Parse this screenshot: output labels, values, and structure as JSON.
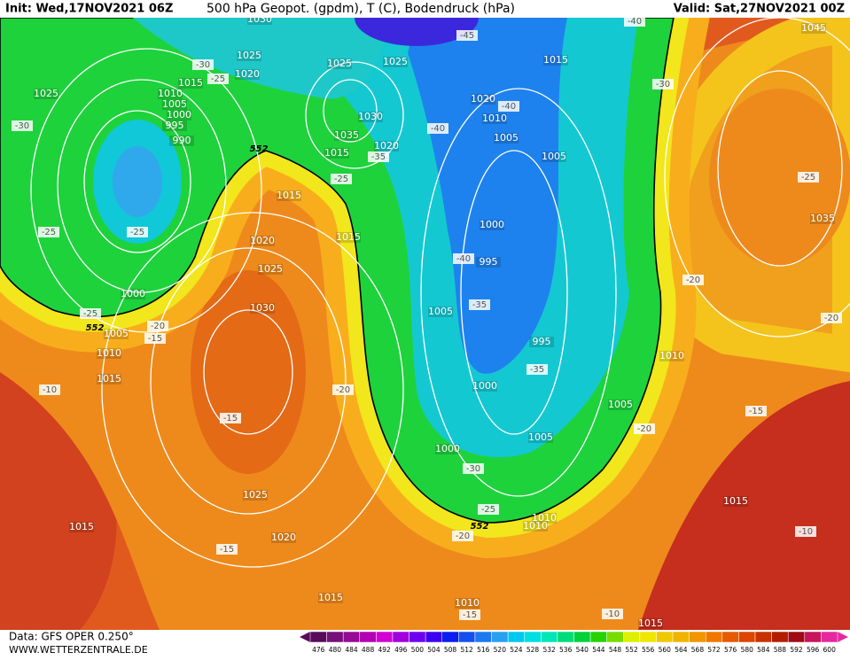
{
  "header": {
    "init": "Init: Wed,17NOV2021 06Z",
    "title": "500 hPa Geopot. (gpdm), T (C), Bodendruck (hPa)",
    "valid": "Valid: Sat,27NOV2021 00Z"
  },
  "footer": {
    "data": "Data: GFS OPER 0.250°",
    "site": "WWW.WETTERZENTRALE.DE"
  },
  "colorbar": {
    "labels": [
      476,
      480,
      484,
      488,
      492,
      496,
      500,
      504,
      508,
      512,
      516,
      520,
      524,
      528,
      532,
      536,
      540,
      544,
      548,
      552,
      556,
      560,
      564,
      568,
      572,
      576,
      580,
      584,
      588,
      592,
      596,
      600
    ],
    "colors": [
      "#5a0a5a",
      "#78107a",
      "#960a96",
      "#b400b4",
      "#d200d2",
      "#a000e0",
      "#6e00f0",
      "#3c00f0",
      "#0a1ef0",
      "#1450f0",
      "#1e78f0",
      "#28a0f0",
      "#00c8f0",
      "#00e0e0",
      "#00e6b4",
      "#00dc78",
      "#00d23c",
      "#28d200",
      "#78dc00",
      "#dcf000",
      "#f0e600",
      "#f0c800",
      "#f0b400",
      "#f09600",
      "#f07800",
      "#e65a00",
      "#dc4600",
      "#c83200",
      "#b41e00",
      "#a00a14",
      "#c8145a",
      "#e628a0"
    ]
  },
  "map_labels": [
    "1030",
    "1025",
    "-30",
    "1020",
    "-25",
    "1015",
    "1010",
    "1005",
    "1000",
    "995",
    "990",
    "1025",
    "-30",
    "552",
    "1025",
    "1025",
    "1030",
    "1035",
    "1020",
    "1015",
    "-35",
    "-25",
    "1015",
    "1015",
    "1020",
    "1025",
    "1030",
    "-25",
    "-25",
    "1000",
    "-25",
    "552",
    "1005",
    "-20",
    "-15",
    "1010",
    "1015",
    "-10",
    "-15",
    "-20",
    "1025",
    "1020",
    "-15",
    "1015",
    "1015",
    "-45",
    "-40",
    "1015",
    "-30",
    "1020",
    "-40",
    "1010",
    "-40",
    "1005",
    "1005",
    "1000",
    "-40",
    "995",
    "1005",
    "-35",
    "995",
    "-35",
    "1000",
    "1005",
    "1005",
    "-20",
    "1000",
    "-30",
    "-25",
    "552",
    "1010",
    "1010",
    "-20",
    "1010",
    "-15",
    "-10",
    "1015",
    "1045",
    "-25",
    "1035",
    "-20",
    "-20",
    "1010",
    "-15",
    "1015",
    "-10"
  ]
}
